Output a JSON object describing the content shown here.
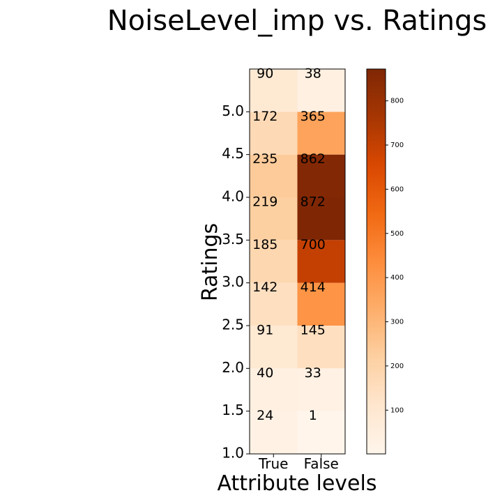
{
  "chart_data": {
    "type": "heatmap",
    "title": "NoiseLevel_imp vs. Ratings",
    "xlabel": "Attribute levels",
    "ylabel": "Ratings",
    "x_categories": [
      "True",
      "False"
    ],
    "y_categories": [
      "1.0",
      "1.5",
      "2.0",
      "2.5",
      "3.0",
      "3.5",
      "4.0",
      "4.5",
      "5.0"
    ],
    "values": [
      [
        24,
        1
      ],
      [
        40,
        33
      ],
      [
        91,
        145
      ],
      [
        142,
        414
      ],
      [
        185,
        700
      ],
      [
        219,
        872
      ],
      [
        235,
        862
      ],
      [
        172,
        365
      ],
      [
        90,
        38
      ]
    ],
    "colormap": "Oranges",
    "color_low": "#fff5eb",
    "color_high": "#7f2704",
    "value_range": [
      1,
      872
    ],
    "colorbar_ticks": [
      "100",
      "200",
      "300",
      "400",
      "500",
      "600",
      "700",
      "800"
    ],
    "grid": false
  }
}
